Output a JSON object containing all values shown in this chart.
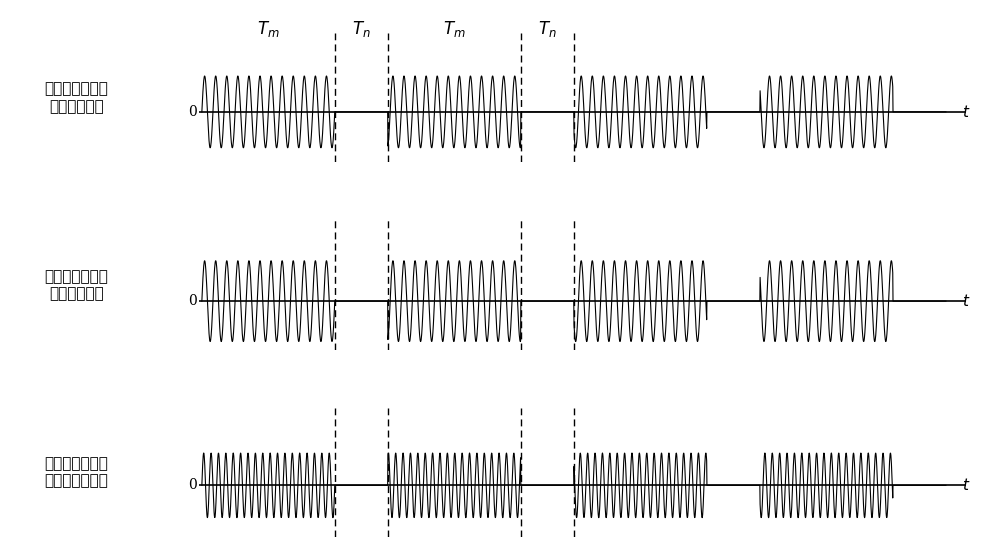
{
  "row_labels": [
    "上射频源输出的\n射频脉冲信号",
    "下射频源输出的\n射频脉冲信号",
    "反应腔室内实际\n加载的脉冲信号"
  ],
  "background_color": "#ffffff",
  "signal_color": "#000000",
  "Tm": 1.0,
  "Tn": 0.4,
  "rf_freq1": 12,
  "rf_freq2": 12,
  "rf_freq3": 18,
  "rf_amp1": 1.0,
  "rf_amp2": 1.0,
  "rf_amp3": 1.0,
  "total_cycles": 4,
  "figsize": [
    9.96,
    5.48
  ],
  "dpi": 100
}
